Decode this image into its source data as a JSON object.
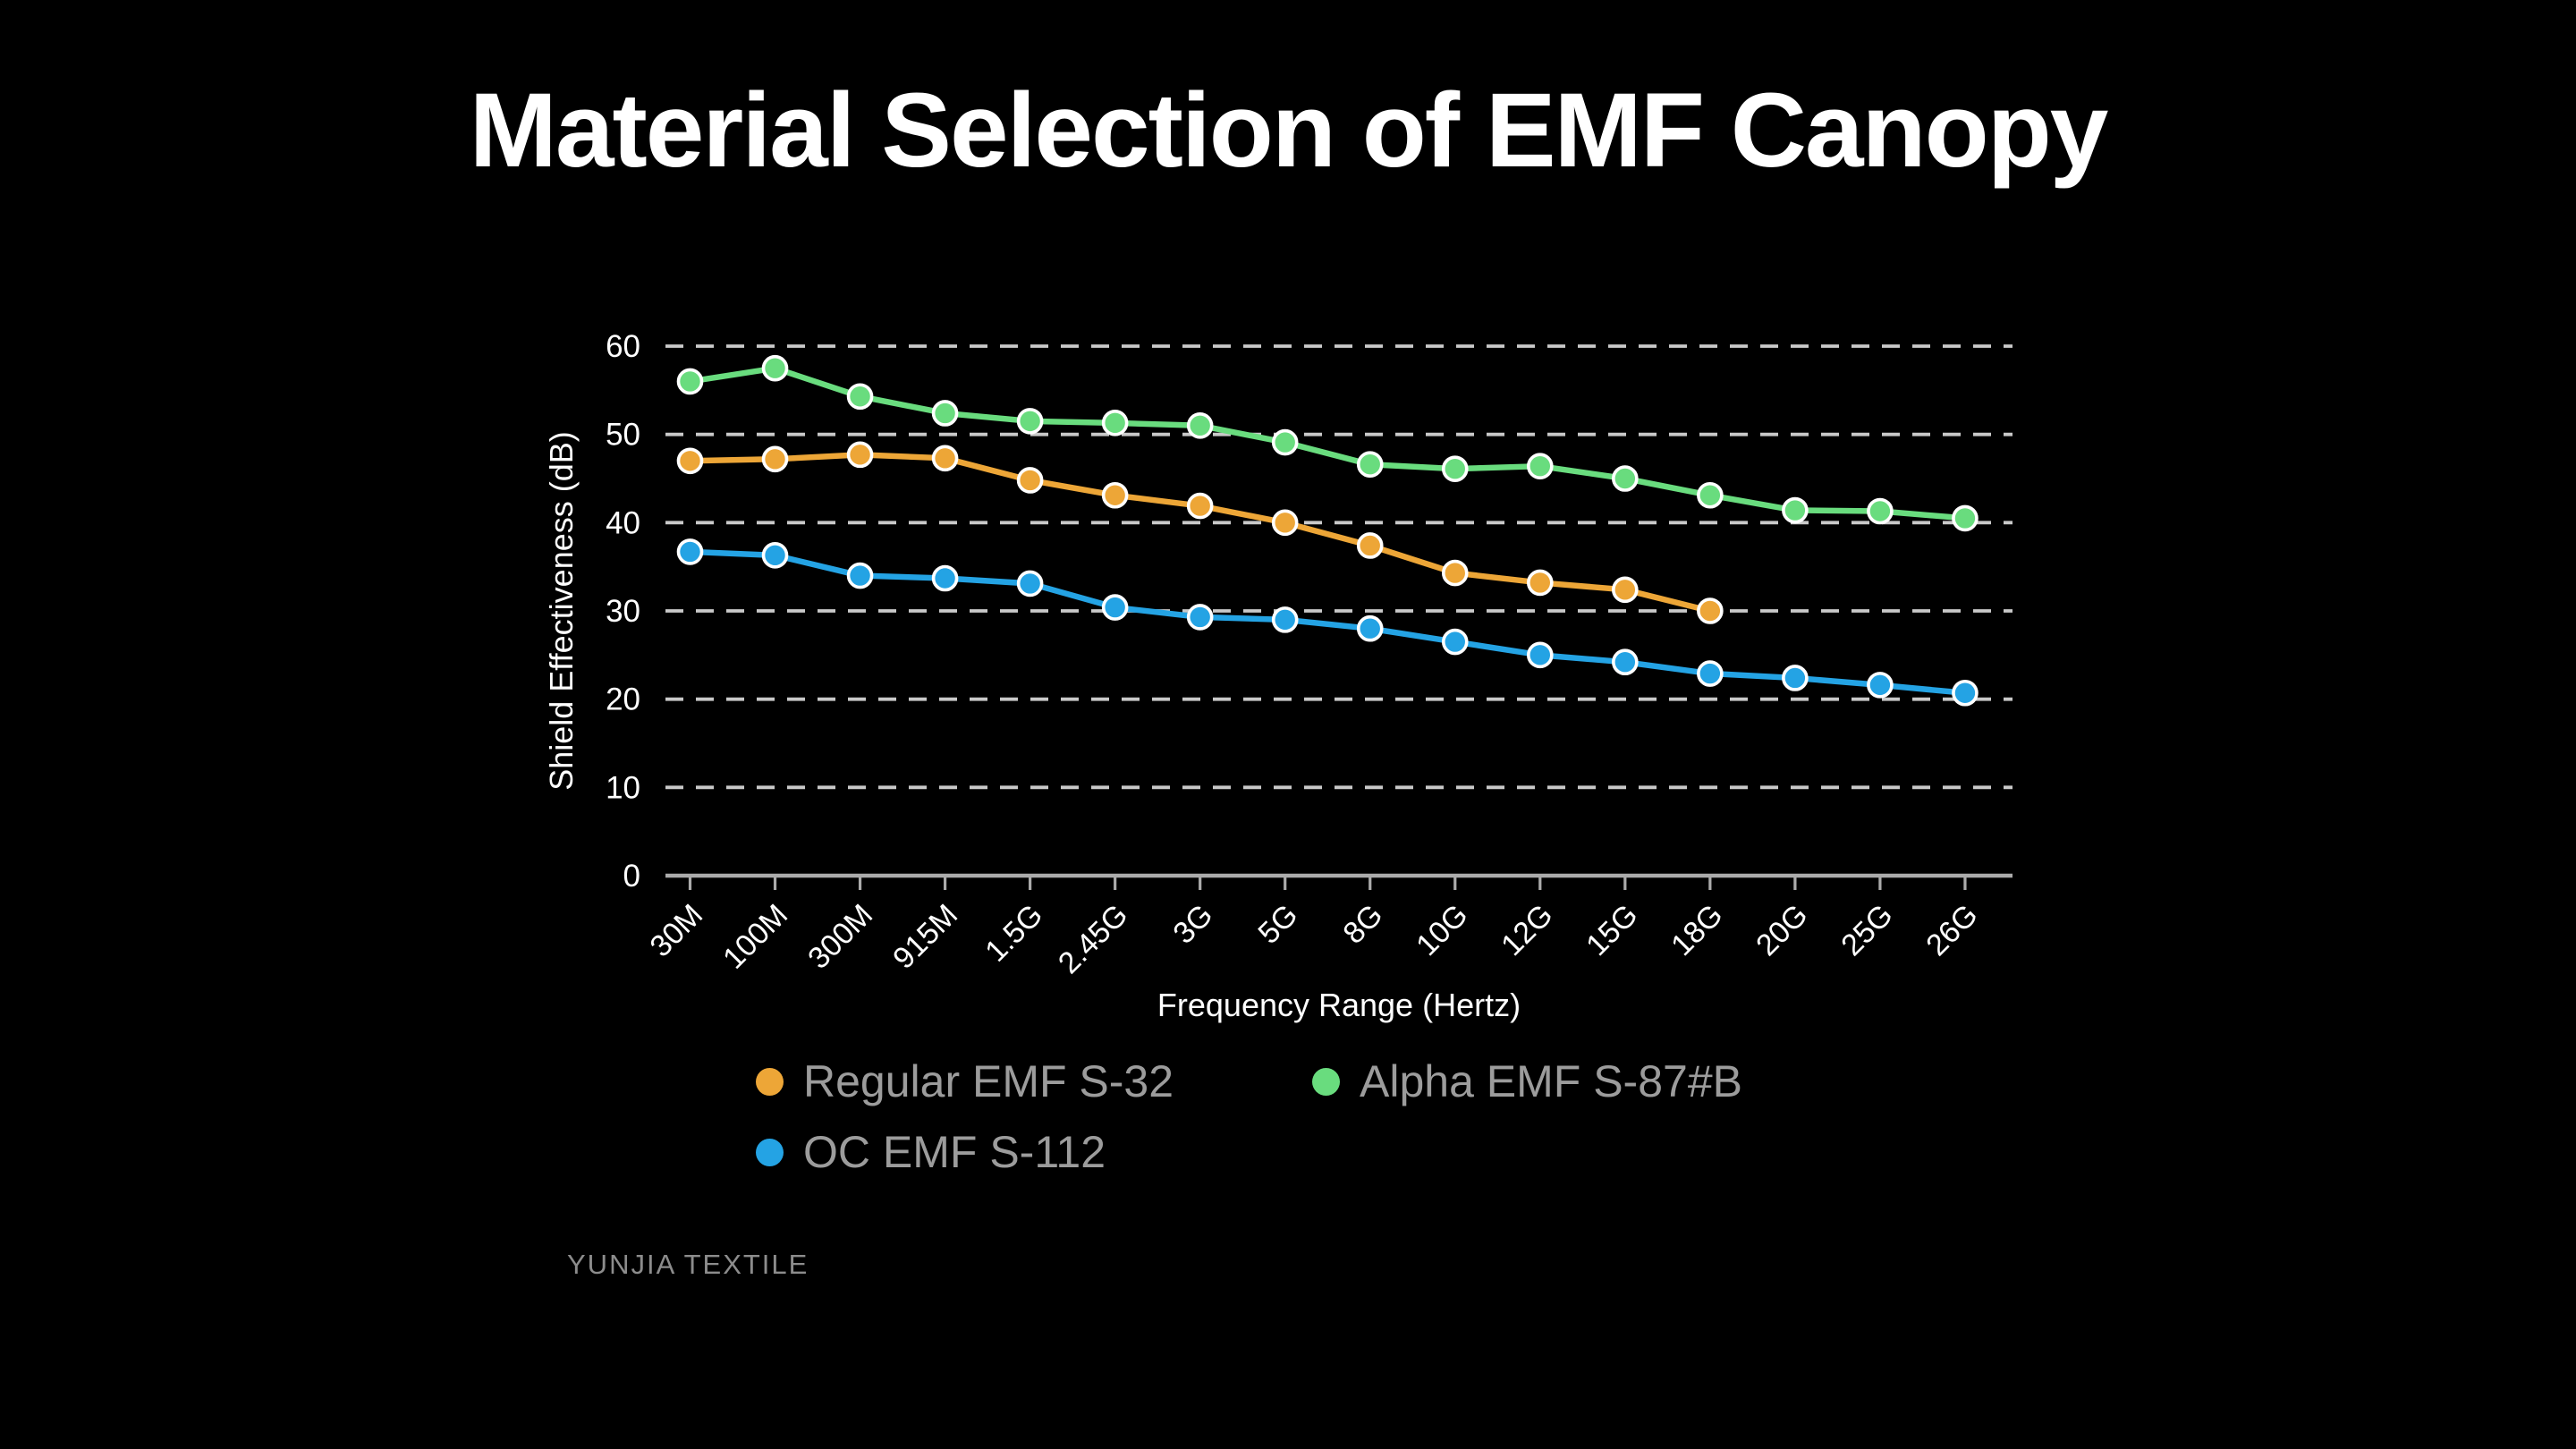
{
  "page": {
    "title": "Material Selection of EMF Canopy",
    "footer": "YUNJIA TEXTILE"
  },
  "chart_data": {
    "type": "line",
    "xlabel": "Frequency Range (Hertz)",
    "ylabel": "Shield Effectiveness (dB)",
    "categories": [
      "30M",
      "100M",
      "300M",
      "915M",
      "1.5G",
      "2.45G",
      "3G",
      "5G",
      "8G",
      "10G",
      "12G",
      "15G",
      "18G",
      "20G",
      "25G",
      "26G"
    ],
    "ylim": [
      0,
      60
    ],
    "yticks": [
      0,
      10,
      20,
      30,
      40,
      50,
      60
    ],
    "grid": "horizontal-dashed",
    "legend_position": "bottom-left",
    "series": [
      {
        "name": "Regular EMF S-32",
        "color": "#EDA637",
        "values": [
          47,
          47.2,
          47.7,
          47.3,
          44.8,
          43.1,
          41.9,
          40,
          37.4,
          34.3,
          33.2,
          32.4,
          30,
          null,
          null,
          null
        ]
      },
      {
        "name": "Alpha EMF S-87#B",
        "color": "#69DC7E",
        "values": [
          56,
          57.5,
          54.3,
          52.4,
          51.5,
          51.3,
          51,
          49.1,
          46.6,
          46.1,
          46.4,
          45,
          43.1,
          41.4,
          41.3,
          40.5
        ]
      },
      {
        "name": "OC EMF S-112",
        "color": "#24A3E4",
        "values": [
          36.7,
          36.3,
          34,
          33.7,
          33.1,
          30.4,
          29.3,
          29,
          28,
          26.5,
          25,
          24.2,
          22.9,
          22.4,
          21.6,
          20.7
        ]
      }
    ],
    "style": {
      "background": "#000000",
      "grid_color": "#c9c9c9",
      "axis_color": "#ababab",
      "tick_label_color": "#ffffff",
      "axis_title_color": "#ffffff",
      "legend_text_color": "#9c9c9c",
      "marker_border_color": "#ffffff"
    }
  }
}
